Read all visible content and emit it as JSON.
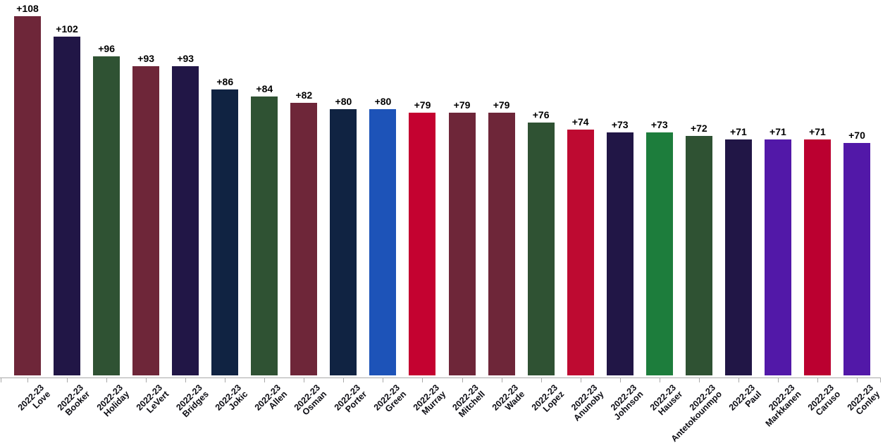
{
  "chart_data": {
    "type": "bar",
    "title": "",
    "xlabel": "",
    "ylabel": "",
    "ylim": [
      0,
      113
    ],
    "grid": false,
    "legend": "none",
    "x_tick_line1": "2022-23",
    "value_prefix": "+",
    "categories": [
      "Love",
      "Booker",
      "Holiday",
      "LeVert",
      "Bridges",
      "Jokic",
      "Allen",
      "Osman",
      "Porter",
      "Green",
      "Murray",
      "Mitchell",
      "Wade",
      "Lopez",
      "Anunoby",
      "Johnson",
      "Hauser",
      "Antetokounmpo",
      "Paul",
      "Markkanen",
      "Caruso",
      "Conley"
    ],
    "values": [
      108,
      102,
      96,
      93,
      93,
      86,
      84,
      82,
      80,
      80,
      79,
      79,
      79,
      76,
      74,
      73,
      73,
      72,
      71,
      71,
      71,
      70
    ],
    "value_labels": [
      "+108",
      "+102",
      "+96",
      "+93",
      "+93",
      "+86",
      "+84",
      "+82",
      "+80",
      "+80",
      "+79",
      "+79",
      "+79",
      "+76",
      "+74",
      "+73",
      "+73",
      "+72",
      "+71",
      "+71",
      "+71",
      "+70"
    ],
    "colors": [
      "#6E2639",
      "#211646",
      "#2F5233",
      "#6E2639",
      "#211646",
      "#102342",
      "#2F5233",
      "#6E2639",
      "#102342",
      "#1D53B8",
      "#C40230",
      "#6E2639",
      "#6E2639",
      "#2F5233",
      "#BE0A31",
      "#211646",
      "#1D7D3C",
      "#2F5233",
      "#211646",
      "#5218A8",
      "#BB0030",
      "#5218A8"
    ],
    "style": {
      "axis_color": "#A9A9A9",
      "background": "#FFFFFF",
      "value_label_color": "#000000",
      "tick_label_color": "#0D0D14"
    }
  }
}
